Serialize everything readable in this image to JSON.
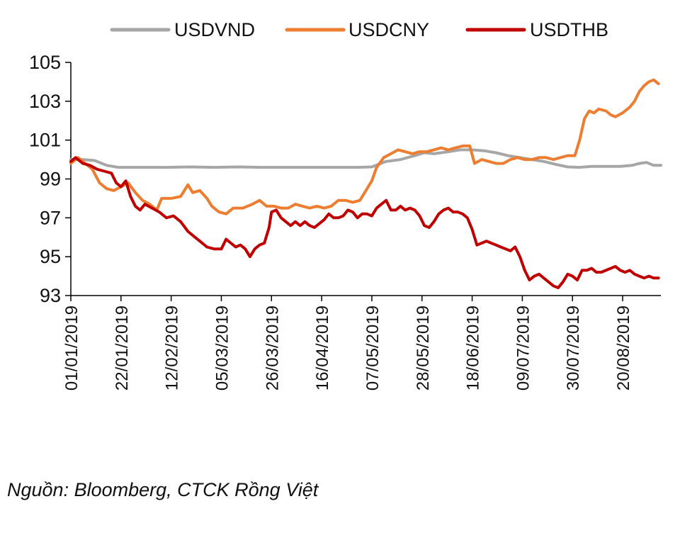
{
  "chart_data": {
    "type": "line",
    "title": "",
    "xlabel": "",
    "ylabel": "",
    "ylim": [
      93,
      105
    ],
    "yticks": [
      93,
      95,
      97,
      99,
      101,
      103,
      105
    ],
    "xlim": [
      0,
      247
    ],
    "xticks": [
      {
        "label": "01/01/2019",
        "day": 0
      },
      {
        "label": "22/01/2019",
        "day": 21
      },
      {
        "label": "12/02/2019",
        "day": 42
      },
      {
        "label": "05/03/2019",
        "day": 63
      },
      {
        "label": "26/03/2019",
        "day": 84
      },
      {
        "label": "16/04/2019",
        "day": 105
      },
      {
        "label": "07/05/2019",
        "day": 126
      },
      {
        "label": "28/05/2019",
        "day": 147
      },
      {
        "label": "18/06/2019",
        "day": 168
      },
      {
        "label": "09/07/2019",
        "day": 189
      },
      {
        "label": "30/07/2019",
        "day": 210
      },
      {
        "label": "20/08/2019",
        "day": 231
      }
    ],
    "legend_position": "top",
    "series": [
      {
        "name": "USDVND",
        "color": "#a6a6a6",
        "points": [
          [
            0,
            100.0
          ],
          [
            5,
            100.0
          ],
          [
            10,
            99.95
          ],
          [
            15,
            99.7
          ],
          [
            20,
            99.6
          ],
          [
            25,
            99.6
          ],
          [
            30,
            99.6
          ],
          [
            40,
            99.6
          ],
          [
            50,
            99.62
          ],
          [
            60,
            99.6
          ],
          [
            70,
            99.62
          ],
          [
            80,
            99.6
          ],
          [
            90,
            99.6
          ],
          [
            100,
            99.6
          ],
          [
            110,
            99.6
          ],
          [
            120,
            99.6
          ],
          [
            126,
            99.62
          ],
          [
            132,
            99.9
          ],
          [
            138,
            100.0
          ],
          [
            144,
            100.2
          ],
          [
            148,
            100.35
          ],
          [
            152,
            100.3
          ],
          [
            158,
            100.4
          ],
          [
            163,
            100.5
          ],
          [
            168,
            100.5
          ],
          [
            173,
            100.45
          ],
          [
            178,
            100.35
          ],
          [
            183,
            100.2
          ],
          [
            188,
            100.1
          ],
          [
            193,
            100.0
          ],
          [
            198,
            99.9
          ],
          [
            203,
            99.75
          ],
          [
            208,
            99.62
          ],
          [
            213,
            99.6
          ],
          [
            218,
            99.65
          ],
          [
            224,
            99.65
          ],
          [
            230,
            99.65
          ],
          [
            235,
            99.7
          ],
          [
            238,
            99.8
          ],
          [
            241,
            99.85
          ],
          [
            244,
            99.7
          ],
          [
            247,
            99.7
          ]
        ]
      },
      {
        "name": "USDCNY",
        "color": "#ed7d31",
        "points": [
          [
            0,
            99.8
          ],
          [
            3,
            100.1
          ],
          [
            6,
            99.8
          ],
          [
            9,
            99.5
          ],
          [
            12,
            98.8
          ],
          [
            15,
            98.5
          ],
          [
            18,
            98.4
          ],
          [
            21,
            98.6
          ],
          [
            24,
            98.8
          ],
          [
            27,
            98.3
          ],
          [
            30,
            97.9
          ],
          [
            33,
            97.7
          ],
          [
            36,
            97.4
          ],
          [
            38,
            98.0
          ],
          [
            42,
            98.0
          ],
          [
            46,
            98.1
          ],
          [
            49,
            98.7
          ],
          [
            51,
            98.3
          ],
          [
            54,
            98.4
          ],
          [
            57,
            98.0
          ],
          [
            59,
            97.6
          ],
          [
            62,
            97.3
          ],
          [
            65,
            97.2
          ],
          [
            68,
            97.5
          ],
          [
            72,
            97.5
          ],
          [
            76,
            97.7
          ],
          [
            79,
            97.9
          ],
          [
            82,
            97.6
          ],
          [
            85,
            97.6
          ],
          [
            88,
            97.5
          ],
          [
            91,
            97.5
          ],
          [
            94,
            97.7
          ],
          [
            97,
            97.6
          ],
          [
            100,
            97.5
          ],
          [
            103,
            97.6
          ],
          [
            106,
            97.5
          ],
          [
            109,
            97.6
          ],
          [
            112,
            97.9
          ],
          [
            115,
            97.9
          ],
          [
            118,
            97.8
          ],
          [
            121,
            97.9
          ],
          [
            124,
            98.5
          ],
          [
            126,
            98.9
          ],
          [
            128,
            99.6
          ],
          [
            131,
            100.1
          ],
          [
            134,
            100.3
          ],
          [
            137,
            100.5
          ],
          [
            140,
            100.4
          ],
          [
            143,
            100.3
          ],
          [
            146,
            100.4
          ],
          [
            149,
            100.4
          ],
          [
            152,
            100.5
          ],
          [
            155,
            100.6
          ],
          [
            158,
            100.5
          ],
          [
            161,
            100.6
          ],
          [
            164,
            100.7
          ],
          [
            167,
            100.7
          ],
          [
            169,
            99.8
          ],
          [
            172,
            100.0
          ],
          [
            175,
            99.9
          ],
          [
            178,
            99.8
          ],
          [
            181,
            99.8
          ],
          [
            184,
            100.0
          ],
          [
            187,
            100.1
          ],
          [
            190,
            100.0
          ],
          [
            193,
            100.0
          ],
          [
            196,
            100.1
          ],
          [
            199,
            100.1
          ],
          [
            202,
            100.0
          ],
          [
            205,
            100.1
          ],
          [
            208,
            100.2
          ],
          [
            211,
            100.2
          ],
          [
            213,
            101.0
          ],
          [
            215,
            102.1
          ],
          [
            217,
            102.5
          ],
          [
            219,
            102.4
          ],
          [
            221,
            102.6
          ],
          [
            224,
            102.5
          ],
          [
            226,
            102.3
          ],
          [
            228,
            102.2
          ],
          [
            231,
            102.4
          ],
          [
            234,
            102.7
          ],
          [
            236,
            103.0
          ],
          [
            238,
            103.5
          ],
          [
            240,
            103.8
          ],
          [
            242,
            104.0
          ],
          [
            244,
            104.1
          ],
          [
            246,
            103.9
          ]
        ]
      },
      {
        "name": "USDTHB",
        "color": "#c00000",
        "points": [
          [
            0,
            99.9
          ],
          [
            2,
            100.1
          ],
          [
            5,
            99.8
          ],
          [
            8,
            99.7
          ],
          [
            11,
            99.5
          ],
          [
            14,
            99.4
          ],
          [
            17,
            99.3
          ],
          [
            19,
            98.8
          ],
          [
            21,
            98.6
          ],
          [
            23,
            98.9
          ],
          [
            25,
            98.1
          ],
          [
            27,
            97.6
          ],
          [
            29,
            97.4
          ],
          [
            31,
            97.7
          ],
          [
            34,
            97.5
          ],
          [
            37,
            97.3
          ],
          [
            40,
            97.0
          ],
          [
            43,
            97.1
          ],
          [
            46,
            96.8
          ],
          [
            49,
            96.3
          ],
          [
            52,
            96.0
          ],
          [
            54,
            95.8
          ],
          [
            57,
            95.5
          ],
          [
            60,
            95.4
          ],
          [
            63,
            95.4
          ],
          [
            65,
            95.9
          ],
          [
            67,
            95.7
          ],
          [
            69,
            95.5
          ],
          [
            71,
            95.6
          ],
          [
            73,
            95.4
          ],
          [
            75,
            95.0
          ],
          [
            77,
            95.4
          ],
          [
            79,
            95.6
          ],
          [
            81,
            95.7
          ],
          [
            83,
            96.5
          ],
          [
            84,
            97.3
          ],
          [
            86,
            97.4
          ],
          [
            88,
            97.0
          ],
          [
            90,
            96.8
          ],
          [
            92,
            96.6
          ],
          [
            94,
            96.8
          ],
          [
            96,
            96.6
          ],
          [
            98,
            96.8
          ],
          [
            100,
            96.6
          ],
          [
            102,
            96.5
          ],
          [
            104,
            96.7
          ],
          [
            106,
            96.9
          ],
          [
            108,
            97.2
          ],
          [
            110,
            97.0
          ],
          [
            112,
            97.0
          ],
          [
            114,
            97.1
          ],
          [
            116,
            97.4
          ],
          [
            118,
            97.3
          ],
          [
            120,
            97.0
          ],
          [
            122,
            97.2
          ],
          [
            124,
            97.2
          ],
          [
            126,
            97.1
          ],
          [
            128,
            97.5
          ],
          [
            130,
            97.7
          ],
          [
            132,
            97.9
          ],
          [
            134,
            97.4
          ],
          [
            136,
            97.4
          ],
          [
            138,
            97.6
          ],
          [
            140,
            97.4
          ],
          [
            142,
            97.5
          ],
          [
            144,
            97.4
          ],
          [
            146,
            97.1
          ],
          [
            148,
            96.6
          ],
          [
            150,
            96.5
          ],
          [
            152,
            96.8
          ],
          [
            154,
            97.2
          ],
          [
            156,
            97.4
          ],
          [
            158,
            97.5
          ],
          [
            160,
            97.3
          ],
          [
            162,
            97.3
          ],
          [
            164,
            97.2
          ],
          [
            166,
            97.0
          ],
          [
            168,
            96.4
          ],
          [
            170,
            95.6
          ],
          [
            172,
            95.7
          ],
          [
            174,
            95.8
          ],
          [
            176,
            95.7
          ],
          [
            178,
            95.6
          ],
          [
            180,
            95.5
          ],
          [
            182,
            95.4
          ],
          [
            184,
            95.3
          ],
          [
            186,
            95.5
          ],
          [
            188,
            95.0
          ],
          [
            190,
            94.3
          ],
          [
            192,
            93.8
          ],
          [
            194,
            94.0
          ],
          [
            196,
            94.1
          ],
          [
            198,
            93.9
          ],
          [
            200,
            93.7
          ],
          [
            202,
            93.5
          ],
          [
            204,
            93.4
          ],
          [
            206,
            93.7
          ],
          [
            208,
            94.1
          ],
          [
            210,
            94.0
          ],
          [
            212,
            93.8
          ],
          [
            214,
            94.3
          ],
          [
            216,
            94.3
          ],
          [
            218,
            94.4
          ],
          [
            220,
            94.2
          ],
          [
            222,
            94.2
          ],
          [
            224,
            94.3
          ],
          [
            226,
            94.4
          ],
          [
            228,
            94.5
          ],
          [
            230,
            94.3
          ],
          [
            232,
            94.2
          ],
          [
            234,
            94.3
          ],
          [
            236,
            94.1
          ],
          [
            238,
            94.0
          ],
          [
            240,
            93.9
          ],
          [
            242,
            94.0
          ],
          [
            244,
            93.9
          ],
          [
            246,
            93.9
          ]
        ]
      }
    ]
  },
  "source_note": "Nguồn: Bloomberg, CTCK Rồng Việt"
}
